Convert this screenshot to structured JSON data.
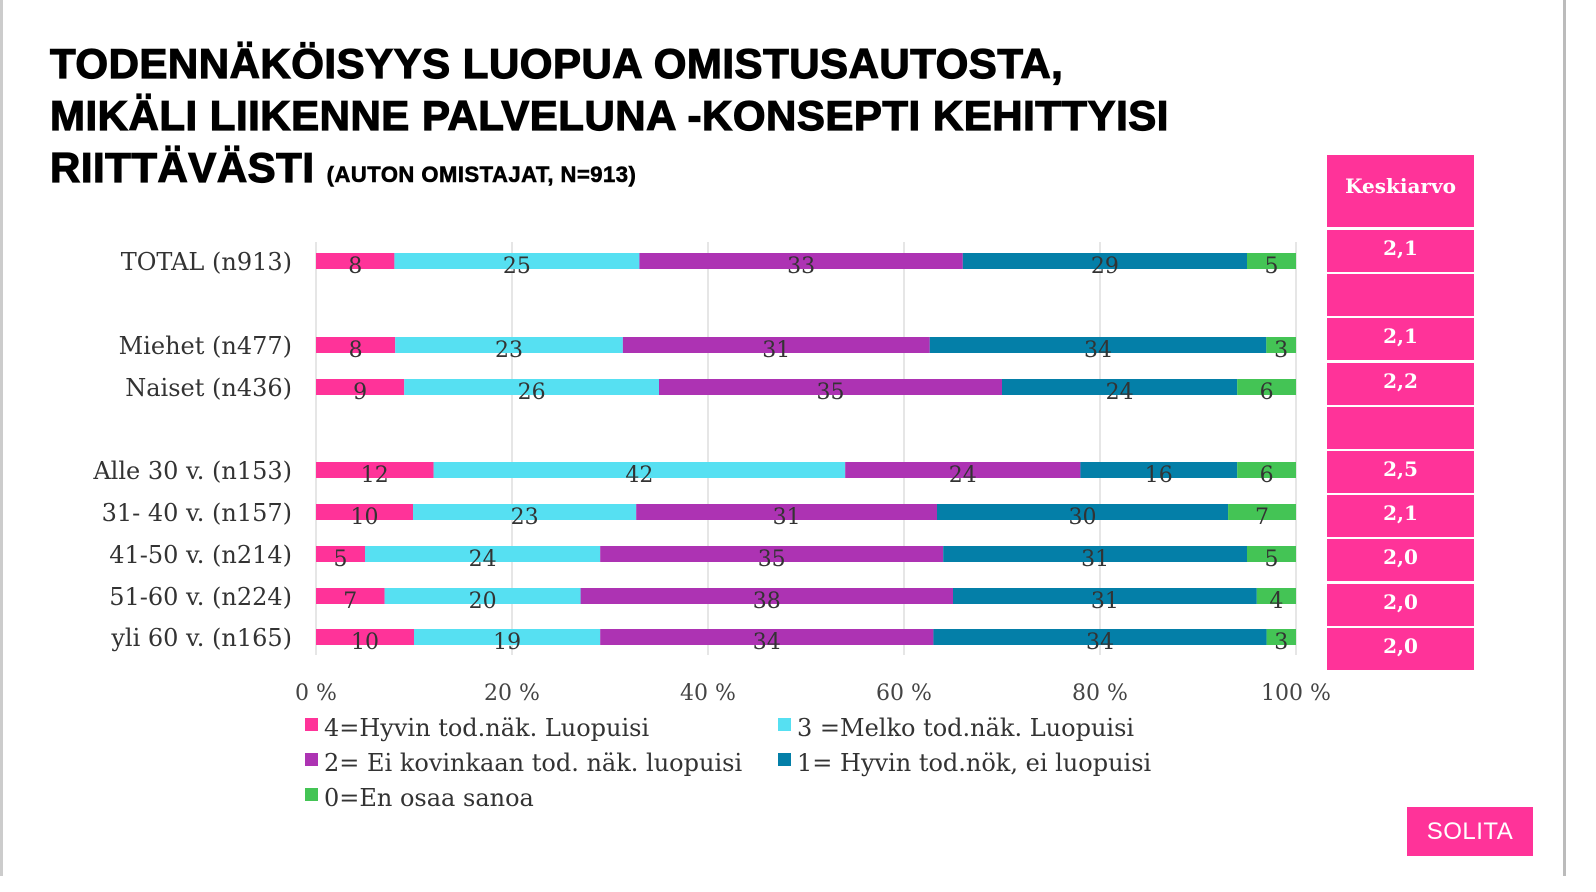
{
  "title_lines": [
    "TODENNÄKÖISYYS LUOPUA OMISTUSAUTOSTA,",
    "MIKÄLI LIIKENNE PALVELUNA -KONSEPTI KEHITTYISI",
    "RIITTÄVÄSTI"
  ],
  "title_sub": "(AUTON OMISTAJAT, N=913)",
  "keskiarvo": {
    "header": "Keskiarvo",
    "values": [
      "2,1",
      "",
      "2,1",
      "2,2",
      "",
      "2,5",
      "2,1",
      "2,0",
      "2,0",
      "2,0"
    ]
  },
  "logo": "SOLITA",
  "chart_data": {
    "type": "bar",
    "orientation": "horizontal",
    "stacked": "percent",
    "categories": [
      "TOTAL (n913)",
      "Miehet (n477)",
      "Naiset (n436)",
      "Alle 30 v. (n153)",
      "31- 40 v. (n157)",
      "41-50 v. (n214)",
      "51-60 v. (n224)",
      "yli 60 v. (n165)"
    ],
    "series": [
      {
        "name": "4=Hyvin tod.näk. Luopuisi",
        "color": "#ff3399",
        "values": [
          8,
          8,
          9,
          12,
          10,
          5,
          7,
          10
        ]
      },
      {
        "name": "3 =Melko tod.näk. Luopuisi",
        "color": "#56e0f2",
        "values": [
          25,
          23,
          26,
          42,
          23,
          24,
          20,
          19
        ]
      },
      {
        "name": "2= Ei kovinkaan tod. näk. luopuisi",
        "color": "#ad33b3",
        "values": [
          33,
          31,
          35,
          24,
          31,
          35,
          38,
          34
        ]
      },
      {
        "name": "1= Hyvin tod.nök, ei luopuisi",
        "color": "#047fa8",
        "values": [
          29,
          34,
          24,
          16,
          30,
          31,
          31,
          34
        ]
      },
      {
        "name": "0=En osaa sanoa",
        "color": "#44c455",
        "values": [
          5,
          3,
          6,
          6,
          7,
          5,
          4,
          3
        ]
      }
    ],
    "xticks": [
      "0 %",
      "20 %",
      "40 %",
      "60 %",
      "80 %",
      "100 %"
    ],
    "xlim": [
      0,
      100
    ],
    "grid": true,
    "legend_position": "bottom"
  }
}
